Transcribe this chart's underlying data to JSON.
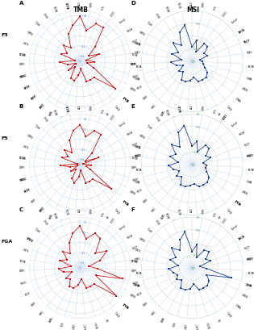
{
  "title_left": "TMB",
  "title_right": "MSI",
  "categories": [
    "ACC",
    "UVM",
    "UCS",
    "UCEC",
    "Thmyi",
    "THCA",
    "TGCT",
    "STAD",
    "SKCM",
    "SARC",
    "READ",
    "PRAD",
    "PCPG",
    "OV",
    "MESO",
    "LUSC",
    "LUAD",
    "LGG",
    "LAML",
    "KIRC",
    "KIRP",
    "KICH",
    "HNSC",
    "GBM",
    "ESCA",
    "DLBC",
    "COAD",
    "CHOL",
    "CESC",
    "BRCA",
    "BLCA"
  ],
  "cats_bold_A": [
    "ESCA",
    "KICH",
    "KIRP",
    "HNSC",
    "KIRC",
    "PRAD",
    "BLCA"
  ],
  "cats_bold_B": [
    "ESCA",
    "KICH",
    "HNSC",
    "PRAD",
    "BLCA",
    "STAD",
    "KIRC"
  ],
  "cats_bold_C": [
    "SARC",
    "PRAD",
    "COAD",
    "FGA"
  ],
  "cats_bold_D": [
    "THCA",
    "TGCT",
    "DLBC",
    "GBM"
  ],
  "cats_bold_E": [
    "DLBC",
    "BLCA",
    "UCEC",
    "STAD",
    "PRAD"
  ],
  "cats_bold_F": [
    "THCA",
    "SARC",
    "STAD",
    "ESCA"
  ],
  "line_color_left": "#cc1111",
  "line_color_right": "#1a3a8a",
  "grid_color": "#b8cfe8",
  "bg_color": "#ffffff",
  "ax_label_color_tmb": "#4488cc",
  "ax_label_color_msi": "#44aa44",
  "data_A": [
    0.38,
    0.12,
    0.3,
    0.3,
    -0.1,
    -0.3,
    -0.1,
    -0.38,
    -0.22,
    -0.35,
    -0.2,
    0.38,
    -0.08,
    -0.08,
    -0.08,
    -0.35,
    -0.22,
    -0.1,
    -0.12,
    -0.35,
    -0.22,
    -0.4,
    -0.25,
    -0.1,
    -0.4,
    -0.1,
    -0.2,
    -0.05,
    -0.18,
    0.08,
    0.22
  ],
  "data_B": [
    0.28,
    0.06,
    0.22,
    0.22,
    -0.18,
    -0.38,
    -0.12,
    -0.44,
    -0.28,
    -0.38,
    -0.28,
    0.28,
    -0.12,
    -0.12,
    -0.12,
    -0.38,
    -0.25,
    -0.12,
    -0.18,
    -0.38,
    -0.28,
    -0.44,
    -0.3,
    -0.12,
    -0.44,
    -0.12,
    -0.22,
    -0.08,
    -0.22,
    0.02,
    0.18
  ],
  "data_C": [
    0.16,
    0.04,
    0.12,
    0.1,
    -0.04,
    0.06,
    -0.04,
    -0.16,
    -0.08,
    0.18,
    -0.08,
    0.2,
    -0.04,
    -0.04,
    -0.04,
    -0.14,
    -0.08,
    -0.04,
    -0.04,
    -0.1,
    -0.08,
    -0.16,
    -0.08,
    -0.04,
    -0.16,
    -0.04,
    -0.1,
    -0.02,
    -0.08,
    0.02,
    0.1
  ],
  "data_D": [
    -0.22,
    -0.08,
    -0.3,
    -0.08,
    -0.08,
    -0.22,
    -0.18,
    -0.35,
    -0.3,
    -0.28,
    -0.22,
    -0.12,
    -0.08,
    -0.08,
    -0.08,
    -0.18,
    -0.12,
    -0.08,
    -0.08,
    -0.22,
    -0.18,
    -0.3,
    -0.18,
    -0.08,
    -0.28,
    -0.08,
    -0.18,
    0.02,
    -0.12,
    0.12,
    0.22
  ],
  "data_E": [
    -0.14,
    -0.04,
    -0.22,
    -0.04,
    -0.04,
    -0.18,
    -0.12,
    -0.28,
    -0.22,
    -0.22,
    -0.18,
    -0.08,
    -0.04,
    -0.04,
    -0.04,
    -0.12,
    -0.08,
    -0.04,
    -0.04,
    -0.18,
    -0.12,
    -0.22,
    -0.12,
    -0.04,
    -0.22,
    -0.04,
    -0.12,
    0.06,
    -0.08,
    0.18,
    0.28
  ],
  "data_F": [
    -0.18,
    -0.04,
    -0.28,
    -0.08,
    -0.04,
    -0.18,
    -0.12,
    -0.35,
    -0.22,
    0.3,
    -0.18,
    -0.08,
    -0.04,
    -0.04,
    -0.04,
    -0.18,
    -0.08,
    -0.04,
    -0.04,
    -0.18,
    -0.12,
    -0.18,
    -0.12,
    -0.04,
    -0.22,
    -0.04,
    -0.12,
    0.06,
    -0.08,
    0.1,
    0.22
  ],
  "rng_AB": [
    -0.5,
    0.5
  ],
  "rng_C": [
    -0.25,
    0.25
  ],
  "rng_DEF": [
    -0.5,
    0.5
  ],
  "grid_AB": [
    -0.4,
    -0.2,
    0.0,
    0.2,
    0.4
  ],
  "grid_C": [
    -0.2,
    -0.1,
    0.0,
    0.1,
    0.2
  ],
  "grid_DEF": [
    -0.5,
    -0.25,
    0.0,
    0.25,
    0.5
  ],
  "glabels_AB": [
    "-0.4",
    "-0.2",
    "0",
    "0.2",
    "0.4"
  ],
  "glabels_C": [
    "-0.2",
    "-0.1",
    "0",
    "0.1",
    "0.2"
  ],
  "glabels_DEF": [
    "-0.5",
    "-0.25",
    "0",
    "0.25",
    "0.5"
  ]
}
